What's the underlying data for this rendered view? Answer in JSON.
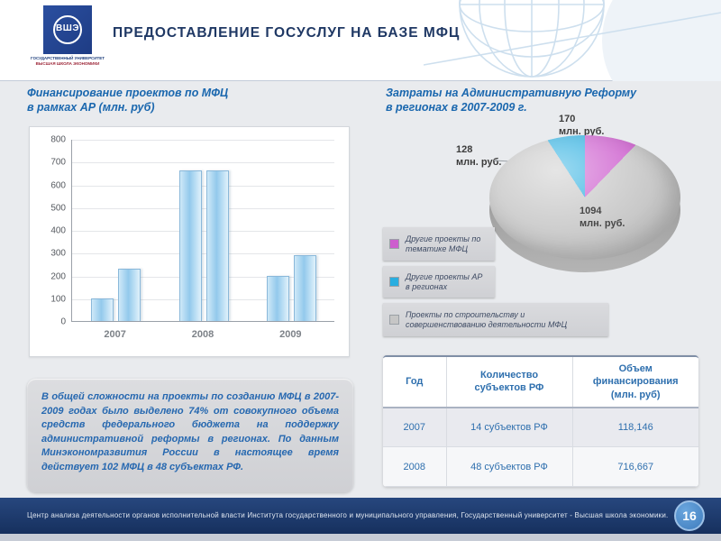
{
  "header": {
    "title": "ПРЕДОСТАВЛЕНИЕ ГОСУСЛУГ НА БАЗЕ МФЦ"
  },
  "logo": {
    "glyph": "ВШЭ",
    "caption_line1": "ГОСУДАРСТВЕННЫЙ УНИВЕРСИТЕТ",
    "caption_line2": "ВЫСШАЯ ШКОЛА ЭКОНОМИКИ"
  },
  "left_section": {
    "title_line1": "Финансирование проектов по МФЦ",
    "title_line2": "в рамках АР (млн. руб)"
  },
  "right_section": {
    "title_line1": "Затраты на Административную Реформу",
    "title_line2": "в регионах в 2007-2009 г."
  },
  "chart_data": [
    {
      "type": "bar",
      "title": "Финансирование проектов по МФЦ в рамках АР (млн. руб)",
      "categories": [
        "2007",
        "2008",
        "2009"
      ],
      "series": [
        {
          "name": "серия 1",
          "values": [
            100,
            660,
            200
          ]
        },
        {
          "name": "серия 2",
          "values": [
            230,
            660,
            290
          ]
        }
      ],
      "ylim": [
        0,
        800
      ],
      "yticks": [
        "800",
        "700",
        "600",
        "500",
        "400",
        "300",
        "200",
        "100",
        "0"
      ],
      "grid": true,
      "bar_color": "#9ccdec",
      "legend_position": "none"
    },
    {
      "type": "pie",
      "title": "Затраты на Административную Реформу в регионах в 2007-2009 г.",
      "style": "3d",
      "slices": [
        {
          "name": "Другие проекты по тематике МФЦ",
          "value": 170,
          "num": "170",
          "unit": "млн. руб.",
          "color": "#cd5ece"
        },
        {
          "name": "Другие проекты АР в регионах",
          "value": 128,
          "num": "128",
          "unit": "млн. руб.",
          "color": "#29aee0"
        },
        {
          "name": "Проекты по строительству и совершенствованию деятельности МФЦ",
          "value": 1094,
          "num": "1094",
          "unit": "млн. руб.",
          "color": "#c6c6c6"
        }
      ],
      "legend_position": "left-bottom"
    }
  ],
  "info_box": {
    "text": "В общей сложности на проекты по созданию МФЦ в 2007-2009 годах было выделено 74% от совокупного объема средств федерального бюджета на поддержку административной реформы в регионах. По данным Минэкономразвития России в настоящее время действует 102 МФЦ в 48 субъектах РФ."
  },
  "table": {
    "headers": [
      "Год",
      "Количество субъектов РФ",
      "Объем финансирования (млн. руб)"
    ],
    "rows": [
      [
        "2007",
        "14 субъектов РФ",
        "118,146"
      ],
      [
        "2008",
        "48 субъектов РФ",
        "716,667"
      ]
    ]
  },
  "footer": {
    "text": "Центр анализа деятельности органов исполнительной власти Института государственного  и муниципального управления, Государственный университет  - Высшая школа экономики.",
    "page": "16"
  },
  "colors": {
    "header_navy": "#1f3864",
    "section_title_blue": "#1a67ae",
    "footer_navy": "#1d3b6d",
    "table_text_blue": "#2e6fae"
  }
}
